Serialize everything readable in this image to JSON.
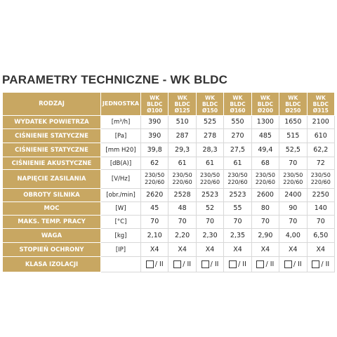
{
  "title": "PARAMETRY TECHNICZNE - WK BLDC",
  "table": {
    "header": {
      "label": "RODZAJ",
      "unit": "JEDNOSTKA",
      "models": [
        [
          "WK",
          "BLDC",
          "Ø100"
        ],
        [
          "WK",
          "BLDC",
          "Ø125"
        ],
        [
          "WK",
          "BLDC",
          "Ø150"
        ],
        [
          "WK",
          "BLDC",
          "Ø160"
        ],
        [
          "WK",
          "BLDC",
          "Ø200"
        ],
        [
          "WK",
          "BLDC",
          "Ø250"
        ],
        [
          "WK",
          "BLDC",
          "Ø315"
        ]
      ]
    },
    "rows": [
      {
        "label": "WYDATEK POWIETRZA",
        "unit": "[m³/h]",
        "values": [
          "390",
          "510",
          "525",
          "550",
          "1300",
          "1650",
          "2100"
        ]
      },
      {
        "label": "CIŚNIENIE STATYCZNE",
        "unit": "[Pa]",
        "values": [
          "390",
          "287",
          "278",
          "270",
          "485",
          "515",
          "610"
        ]
      },
      {
        "label": "CIŚNIENIE STATYCZNE",
        "unit": "[mm H20]",
        "values": [
          "39,8",
          "29,3",
          "28,3",
          "27,5",
          "49,4",
          "52,5",
          "62,2"
        ]
      },
      {
        "label": "CIŚNIENIE AKUSTYCZNE",
        "unit": "[dB(A)]",
        "values": [
          "62",
          "61",
          "61",
          "61",
          "68",
          "70",
          "72"
        ]
      },
      {
        "label": "NAPIĘCIE ZASILANIA",
        "unit": "[V/Hz]",
        "values": [
          [
            "230/50",
            "220/60"
          ],
          [
            "230/50",
            "220/60"
          ],
          [
            "230/50",
            "220/60"
          ],
          [
            "230/50",
            "220/60"
          ],
          [
            "230/50",
            "220/60"
          ],
          [
            "230/50",
            "220/60"
          ],
          [
            "230/50",
            "220/60"
          ]
        ]
      },
      {
        "label": "OBROTY SILNIKA",
        "unit": "[obr./min]",
        "values": [
          "2620",
          "2528",
          "2523",
          "2523",
          "2600",
          "2400",
          "2250"
        ]
      },
      {
        "label": "MOC",
        "unit": "[W]",
        "values": [
          "45",
          "48",
          "52",
          "55",
          "80",
          "90",
          "140"
        ]
      },
      {
        "label": "MAKS. TEMP. PRACY",
        "unit": "[°C]",
        "values": [
          "70",
          "70",
          "70",
          "70",
          "70",
          "70",
          "70"
        ]
      },
      {
        "label": "WAGA",
        "unit": "[kg]",
        "values": [
          "2,10",
          "2,20",
          "2,30",
          "2,35",
          "2,90",
          "4,00",
          "6,50"
        ]
      },
      {
        "label": "STOPIEŃ OCHRONY",
        "unit": "[IP]",
        "values": [
          "X4",
          "X4",
          "X4",
          "X4",
          "X4",
          "X4",
          "X4"
        ]
      },
      {
        "label": "KLASA IZOLACJI",
        "unit": "",
        "values": [
          "/ II",
          "/ II",
          "/ II",
          "/ II",
          "/ II",
          "/ II",
          "/ II"
        ]
      }
    ]
  }
}
